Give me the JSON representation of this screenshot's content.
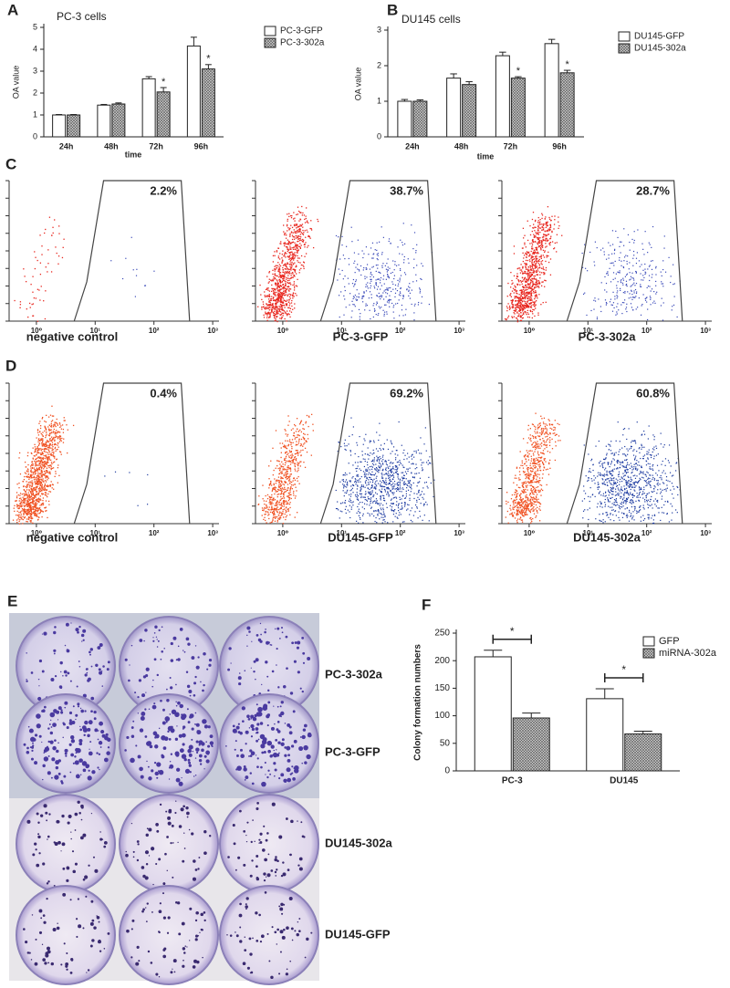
{
  "chart_data": [
    {
      "type": "bar",
      "panel_label": "A",
      "title": "PC-3 cells",
      "y_label": "OA value",
      "x_label": "time",
      "categories": [
        "24h",
        "48h",
        "72h",
        "96h"
      ],
      "series": [
        {
          "name": "PC-3-GFP",
          "color": "#ffffff",
          "values": [
            1.0,
            1.45,
            2.65,
            4.15
          ],
          "errors": [
            0.02,
            0.03,
            0.1,
            0.4
          ]
        },
        {
          "name": "PC-3-302a",
          "color": "#ffffff",
          "hatch": true,
          "values": [
            1.0,
            1.5,
            2.05,
            3.1
          ],
          "errors": [
            0.02,
            0.05,
            0.2,
            0.2
          ],
          "significance": [
            null,
            null,
            "*",
            "*"
          ]
        }
      ],
      "ylim": [
        0,
        5
      ],
      "yticks": [
        0,
        1,
        2,
        3,
        4,
        5
      ],
      "legend": "upper right"
    },
    {
      "type": "bar",
      "panel_label": "B",
      "title": "DU145 cells",
      "y_label": "OA value",
      "x_label": "time",
      "categories": [
        "24h",
        "48h",
        "72h",
        "96h"
      ],
      "series": [
        {
          "name": "DU145-GFP",
          "color": "#ffffff",
          "values": [
            1.0,
            1.65,
            2.28,
            2.62
          ],
          "errors": [
            0.05,
            0.12,
            0.1,
            0.12
          ]
        },
        {
          "name": "DU145-302a",
          "color": "#ffffff",
          "hatch": true,
          "values": [
            1.0,
            1.47,
            1.65,
            1.8
          ],
          "errors": [
            0.04,
            0.08,
            0.04,
            0.07
          ],
          "significance": [
            null,
            null,
            "*",
            "*"
          ]
        }
      ],
      "ylim": [
        0,
        3
      ],
      "yticks": [
        0,
        1,
        2,
        3
      ],
      "legend": "upper right"
    },
    {
      "type": "bar",
      "panel_label": "F",
      "y_label": "Colony formation numbers",
      "categories": [
        "PC-3",
        "DU145"
      ],
      "series": [
        {
          "name": "GFP",
          "color": "#ffffff",
          "values": [
            207,
            131
          ],
          "errors": [
            12,
            18
          ]
        },
        {
          "name": "miRNA-302a",
          "color": "#ffffff",
          "hatch": true,
          "values": [
            96,
            67
          ],
          "errors": [
            9,
            5
          ]
        }
      ],
      "significance": [
        "*",
        "*"
      ],
      "ylim": [
        0,
        250
      ],
      "yticks": [
        0,
        50,
        100,
        150,
        200,
        250
      ],
      "legend": "upper right"
    }
  ],
  "flow_panels": [
    {
      "label": "C",
      "plots": [
        {
          "percent": "2.2%",
          "caption": "negative control"
        },
        {
          "percent": "38.7%",
          "caption": "PC-3-GFP"
        },
        {
          "percent": "28.7%",
          "caption": "PC-3-302a"
        }
      ]
    },
    {
      "label": "D",
      "plots": [
        {
          "percent": "0.4%",
          "caption": "negative control"
        },
        {
          "percent": "69.2%",
          "caption": "DU145-GFP"
        },
        {
          "percent": "60.8%",
          "caption": "DU145-302a"
        }
      ]
    }
  ],
  "flow_x_tick_labels": [
    "10⁰",
    "10¹",
    "10²",
    "10³"
  ],
  "colony_panel": {
    "label": "E",
    "row_labels": [
      "PC-3-302a",
      "PC-3-GFP",
      "DU145-302a",
      "DU145-GFP"
    ]
  }
}
